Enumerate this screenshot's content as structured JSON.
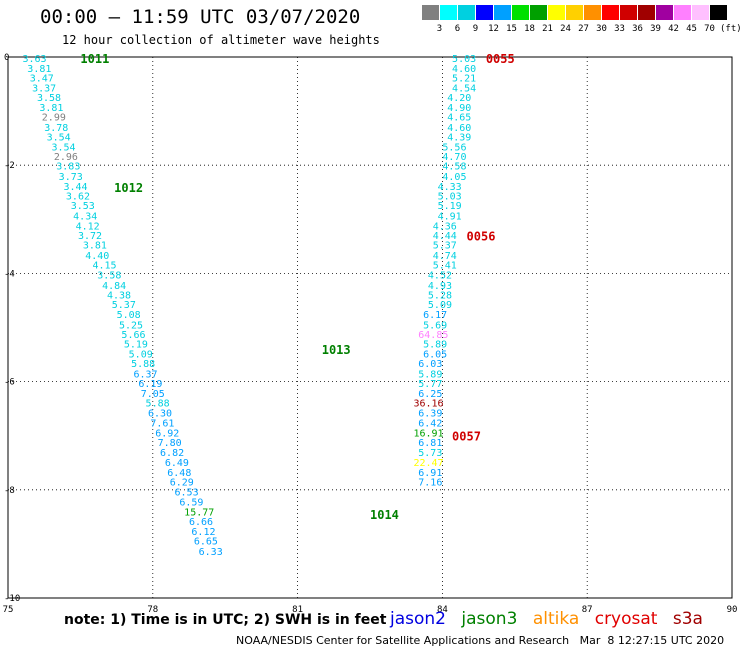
{
  "header": {
    "title": "00:00 – 11:59 UTC 03/07/2020",
    "subtitle": "12 hour collection of altimeter wave heights"
  },
  "legend": {
    "unit": "(ft)",
    "colors": [
      "#808080",
      "#00ffff",
      "#00d0e0",
      "#0000ff",
      "#00a0ff",
      "#00e000",
      "#00a000",
      "#ffff00",
      "#ffd000",
      "#ff9000",
      "#ff0000",
      "#d00000",
      "#a00000",
      "#a000a0",
      "#ff80ff",
      "#ffc0ff",
      "#000000"
    ],
    "labels": [
      "3",
      "6",
      "9",
      "12",
      "15",
      "18",
      "21",
      "24",
      "27",
      "30",
      "33",
      "36",
      "39",
      "42",
      "45",
      "70"
    ]
  },
  "chart_data": {
    "type": "scatter",
    "x_ticks": [
      "75",
      "78",
      "81",
      "84",
      "87",
      "90"
    ],
    "y_ticks": [
      "0",
      "-2",
      "-4",
      "-6",
      "-8",
      "-10"
    ],
    "xlim": [
      75,
      90
    ],
    "ylim": [
      -10,
      0
    ],
    "grid": true,
    "tracks": [
      {
        "label": "1011",
        "color": "#008000",
        "x": 76.5,
        "y": -0.02
      },
      {
        "label": "1012",
        "color": "#008000",
        "x": 77.2,
        "y": -2.4
      },
      {
        "label": "1013",
        "color": "#008000",
        "x": 81.5,
        "y": -5.4
      },
      {
        "label": "1014",
        "color": "#008000",
        "x": 82.5,
        "y": -8.45
      },
      {
        "label": "0055",
        "color": "#d00000",
        "x": 84.9,
        "y": -0.02
      },
      {
        "label": "0056",
        "color": "#d00000",
        "x": 84.5,
        "y": -3.3
      },
      {
        "label": "0057",
        "color": "#d00000",
        "x": 84.2,
        "y": -7.0
      }
    ],
    "swh_points": [
      {
        "value": "3.63",
        "color": "#00d0e0",
        "x": 75.3,
        "y": -0.02
      },
      {
        "value": "3.81",
        "color": "#00d0e0",
        "x": 75.4,
        "y": -0.2
      },
      {
        "value": "3.47",
        "color": "#00d0e0",
        "x": 75.45,
        "y": -0.38
      },
      {
        "value": "3.37",
        "color": "#00d0e0",
        "x": 75.5,
        "y": -0.56
      },
      {
        "value": "3.58",
        "color": "#00d0e0",
        "x": 75.6,
        "y": -0.74
      },
      {
        "value": "3.81",
        "color": "#00d0e0",
        "x": 75.65,
        "y": -0.92
      },
      {
        "value": "2.99",
        "color": "#808080",
        "x": 75.7,
        "y": -1.1
      },
      {
        "value": "3.78",
        "color": "#00d0e0",
        "x": 75.75,
        "y": -1.29
      },
      {
        "value": "3.54",
        "color": "#00d0e0",
        "x": 75.8,
        "y": -1.47
      },
      {
        "value": "3.54",
        "color": "#00d0e0",
        "x": 75.9,
        "y": -1.65
      },
      {
        "value": "2.96",
        "color": "#808080",
        "x": 75.95,
        "y": -1.83
      },
      {
        "value": "3.83",
        "color": "#00d0e0",
        "x": 76.0,
        "y": -2.01
      },
      {
        "value": "3.73",
        "color": "#00d0e0",
        "x": 76.05,
        "y": -2.2
      },
      {
        "value": "3.44",
        "color": "#00d0e0",
        "x": 76.15,
        "y": -2.38
      },
      {
        "value": "3.62",
        "color": "#00d0e0",
        "x": 76.2,
        "y": -2.56
      },
      {
        "value": "3.53",
        "color": "#00d0e0",
        "x": 76.3,
        "y": -2.74
      },
      {
        "value": "4.34",
        "color": "#00d0e0",
        "x": 76.35,
        "y": -2.93
      },
      {
        "value": "4.12",
        "color": "#00d0e0",
        "x": 76.4,
        "y": -3.11
      },
      {
        "value": "3.72",
        "color": "#00d0e0",
        "x": 76.45,
        "y": -3.29
      },
      {
        "value": "3.81",
        "color": "#00d0e0",
        "x": 76.55,
        "y": -3.47
      },
      {
        "value": "4.40",
        "color": "#00d0e0",
        "x": 76.6,
        "y": -3.66
      },
      {
        "value": "4.15",
        "color": "#00d0e0",
        "x": 76.75,
        "y": -3.84
      },
      {
        "value": "3.58",
        "color": "#00d0e0",
        "x": 76.85,
        "y": -4.02
      },
      {
        "value": "4.84",
        "color": "#00d0e0",
        "x": 76.95,
        "y": -4.21
      },
      {
        "value": "4.38",
        "color": "#00d0e0",
        "x": 77.05,
        "y": -4.39
      },
      {
        "value": "5.37",
        "color": "#00d0e0",
        "x": 77.15,
        "y": -4.57
      },
      {
        "value": "5.08",
        "color": "#00d0e0",
        "x": 77.25,
        "y": -4.75
      },
      {
        "value": "5.25",
        "color": "#00d0e0",
        "x": 77.3,
        "y": -4.94
      },
      {
        "value": "5.66",
        "color": "#00d0e0",
        "x": 77.35,
        "y": -5.12
      },
      {
        "value": "5.19",
        "color": "#00d0e0",
        "x": 77.4,
        "y": -5.3
      },
      {
        "value": "5.09",
        "color": "#00d0e0",
        "x": 77.5,
        "y": -5.48
      },
      {
        "value": "5.88",
        "color": "#00d0e0",
        "x": 77.55,
        "y": -5.66
      },
      {
        "value": "6.37",
        "color": "#00a0ff",
        "x": 77.6,
        "y": -5.85
      },
      {
        "value": "6.19",
        "color": "#00a0ff",
        "x": 77.7,
        "y": -6.03
      },
      {
        "value": "7.05",
        "color": "#00a0ff",
        "x": 77.75,
        "y": -6.21
      },
      {
        "value": "5.88",
        "color": "#00d0e0",
        "x": 77.85,
        "y": -6.39
      },
      {
        "value": "6.30",
        "color": "#00a0ff",
        "x": 77.9,
        "y": -6.57
      },
      {
        "value": "7.61",
        "color": "#00a0ff",
        "x": 77.95,
        "y": -6.76
      },
      {
        "value": "6.92",
        "color": "#00a0ff",
        "x": 78.05,
        "y": -6.94
      },
      {
        "value": "7.80",
        "color": "#00a0ff",
        "x": 78.1,
        "y": -7.12
      },
      {
        "value": "6.82",
        "color": "#00a0ff",
        "x": 78.15,
        "y": -7.3
      },
      {
        "value": "6.49",
        "color": "#00a0ff",
        "x": 78.25,
        "y": -7.49
      },
      {
        "value": "6.48",
        "color": "#00a0ff",
        "x": 78.3,
        "y": -7.67
      },
      {
        "value": "6.29",
        "color": "#00a0ff",
        "x": 78.35,
        "y": -7.85
      },
      {
        "value": "6.53",
        "color": "#00a0ff",
        "x": 78.45,
        "y": -8.03
      },
      {
        "value": "6.59",
        "color": "#00a0ff",
        "x": 78.55,
        "y": -8.22
      },
      {
        "value": "15.77",
        "color": "#00a000",
        "x": 78.65,
        "y": -8.4
      },
      {
        "value": "6.66",
        "color": "#00a0ff",
        "x": 78.75,
        "y": -8.58
      },
      {
        "value": "6.12",
        "color": "#00a0ff",
        "x": 78.8,
        "y": -8.76
      },
      {
        "value": "6.65",
        "color": "#00a0ff",
        "x": 78.85,
        "y": -8.94
      },
      {
        "value": "6.33",
        "color": "#00a0ff",
        "x": 78.95,
        "y": -9.13
      },
      {
        "value": "5.03",
        "color": "#00d0e0",
        "x": 84.2,
        "y": -0.02
      },
      {
        "value": "4.60",
        "color": "#00d0e0",
        "x": 84.2,
        "y": -0.2
      },
      {
        "value": "5.21",
        "color": "#00d0e0",
        "x": 84.2,
        "y": -0.38
      },
      {
        "value": "4.54",
        "color": "#00d0e0",
        "x": 84.2,
        "y": -0.56
      },
      {
        "value": "4.20",
        "color": "#00d0e0",
        "x": 84.1,
        "y": -0.74
      },
      {
        "value": "4.90",
        "color": "#00d0e0",
        "x": 84.1,
        "y": -0.92
      },
      {
        "value": "4.65",
        "color": "#00d0e0",
        "x": 84.1,
        "y": -1.1
      },
      {
        "value": "4.60",
        "color": "#00d0e0",
        "x": 84.1,
        "y": -1.29
      },
      {
        "value": "4.39",
        "color": "#00d0e0",
        "x": 84.1,
        "y": -1.47
      },
      {
        "value": "5.56",
        "color": "#00d0e0",
        "x": 84.0,
        "y": -1.65
      },
      {
        "value": "4.70",
        "color": "#00d0e0",
        "x": 84.0,
        "y": -1.83
      },
      {
        "value": "4.58",
        "color": "#00d0e0",
        "x": 84.0,
        "y": -2.01
      },
      {
        "value": "4.05",
        "color": "#00d0e0",
        "x": 84.0,
        "y": -2.2
      },
      {
        "value": "4.33",
        "color": "#00d0e0",
        "x": 83.9,
        "y": -2.38
      },
      {
        "value": "5.03",
        "color": "#00d0e0",
        "x": 83.9,
        "y": -2.56
      },
      {
        "value": "5.19",
        "color": "#00d0e0",
        "x": 83.9,
        "y": -2.74
      },
      {
        "value": "4.91",
        "color": "#00d0e0",
        "x": 83.9,
        "y": -2.93
      },
      {
        "value": "4.36",
        "color": "#00d0e0",
        "x": 83.8,
        "y": -3.11
      },
      {
        "value": "4.44",
        "color": "#00d0e0",
        "x": 83.8,
        "y": -3.29
      },
      {
        "value": "5.37",
        "color": "#00d0e0",
        "x": 83.8,
        "y": -3.47
      },
      {
        "value": "4.74",
        "color": "#00d0e0",
        "x": 83.8,
        "y": -3.66
      },
      {
        "value": "5.41",
        "color": "#00d0e0",
        "x": 83.8,
        "y": -3.84
      },
      {
        "value": "4.52",
        "color": "#00d0e0",
        "x": 83.7,
        "y": -4.02
      },
      {
        "value": "4.93",
        "color": "#00d0e0",
        "x": 83.7,
        "y": -4.21
      },
      {
        "value": "5.28",
        "color": "#00d0e0",
        "x": 83.7,
        "y": -4.39
      },
      {
        "value": "5.09",
        "color": "#00d0e0",
        "x": 83.7,
        "y": -4.57
      },
      {
        "value": "6.17",
        "color": "#00a0ff",
        "x": 83.6,
        "y": -4.75
      },
      {
        "value": "5.69",
        "color": "#00d0e0",
        "x": 83.6,
        "y": -4.94
      },
      {
        "value": "64.85",
        "color": "#ff80ff",
        "x": 83.5,
        "y": -5.12
      },
      {
        "value": "5.89",
        "color": "#00d0e0",
        "x": 83.6,
        "y": -5.3
      },
      {
        "value": "6.05",
        "color": "#00a0ff",
        "x": 83.6,
        "y": -5.48
      },
      {
        "value": "6.03",
        "color": "#00a0ff",
        "x": 83.5,
        "y": -5.66
      },
      {
        "value": "5.89",
        "color": "#00d0e0",
        "x": 83.5,
        "y": -5.85
      },
      {
        "value": "5.77",
        "color": "#00d0e0",
        "x": 83.5,
        "y": -6.03
      },
      {
        "value": "6.25",
        "color": "#00a0ff",
        "x": 83.5,
        "y": -6.21
      },
      {
        "value": "36.16",
        "color": "#a00000",
        "x": 83.4,
        "y": -6.39
      },
      {
        "value": "6.39",
        "color": "#00a0ff",
        "x": 83.5,
        "y": -6.57
      },
      {
        "value": "6.42",
        "color": "#00a0ff",
        "x": 83.5,
        "y": -6.76
      },
      {
        "value": "16.91",
        "color": "#00a000",
        "x": 83.4,
        "y": -6.94
      },
      {
        "value": "6.81",
        "color": "#00a0ff",
        "x": 83.5,
        "y": -7.12
      },
      {
        "value": "5.73",
        "color": "#00d0e0",
        "x": 83.5,
        "y": -7.3
      },
      {
        "value": "22.47",
        "color": "#ffff00",
        "x": 83.4,
        "y": -7.49
      },
      {
        "value": "6.91",
        "color": "#00a0ff",
        "x": 83.5,
        "y": -7.67
      },
      {
        "value": "7.16",
        "color": "#00a0ff",
        "x": 83.5,
        "y": -7.85
      }
    ]
  },
  "footer": {
    "note": "note: 1) Time is in UTC; 2) SWH is in feet",
    "satellites": [
      {
        "name": "jason2",
        "color": "#0000e0"
      },
      {
        "name": "jason3",
        "color": "#008000"
      },
      {
        "name": "altika",
        "color": "#ff9000"
      },
      {
        "name": "cryosat",
        "color": "#e00000"
      },
      {
        "name": "s3a",
        "color": "#a00000"
      }
    ],
    "credit": "NOAA/NESDIS Center for Satellite Applications and Research   Mar  8 12:27:15 UTC 2020"
  }
}
